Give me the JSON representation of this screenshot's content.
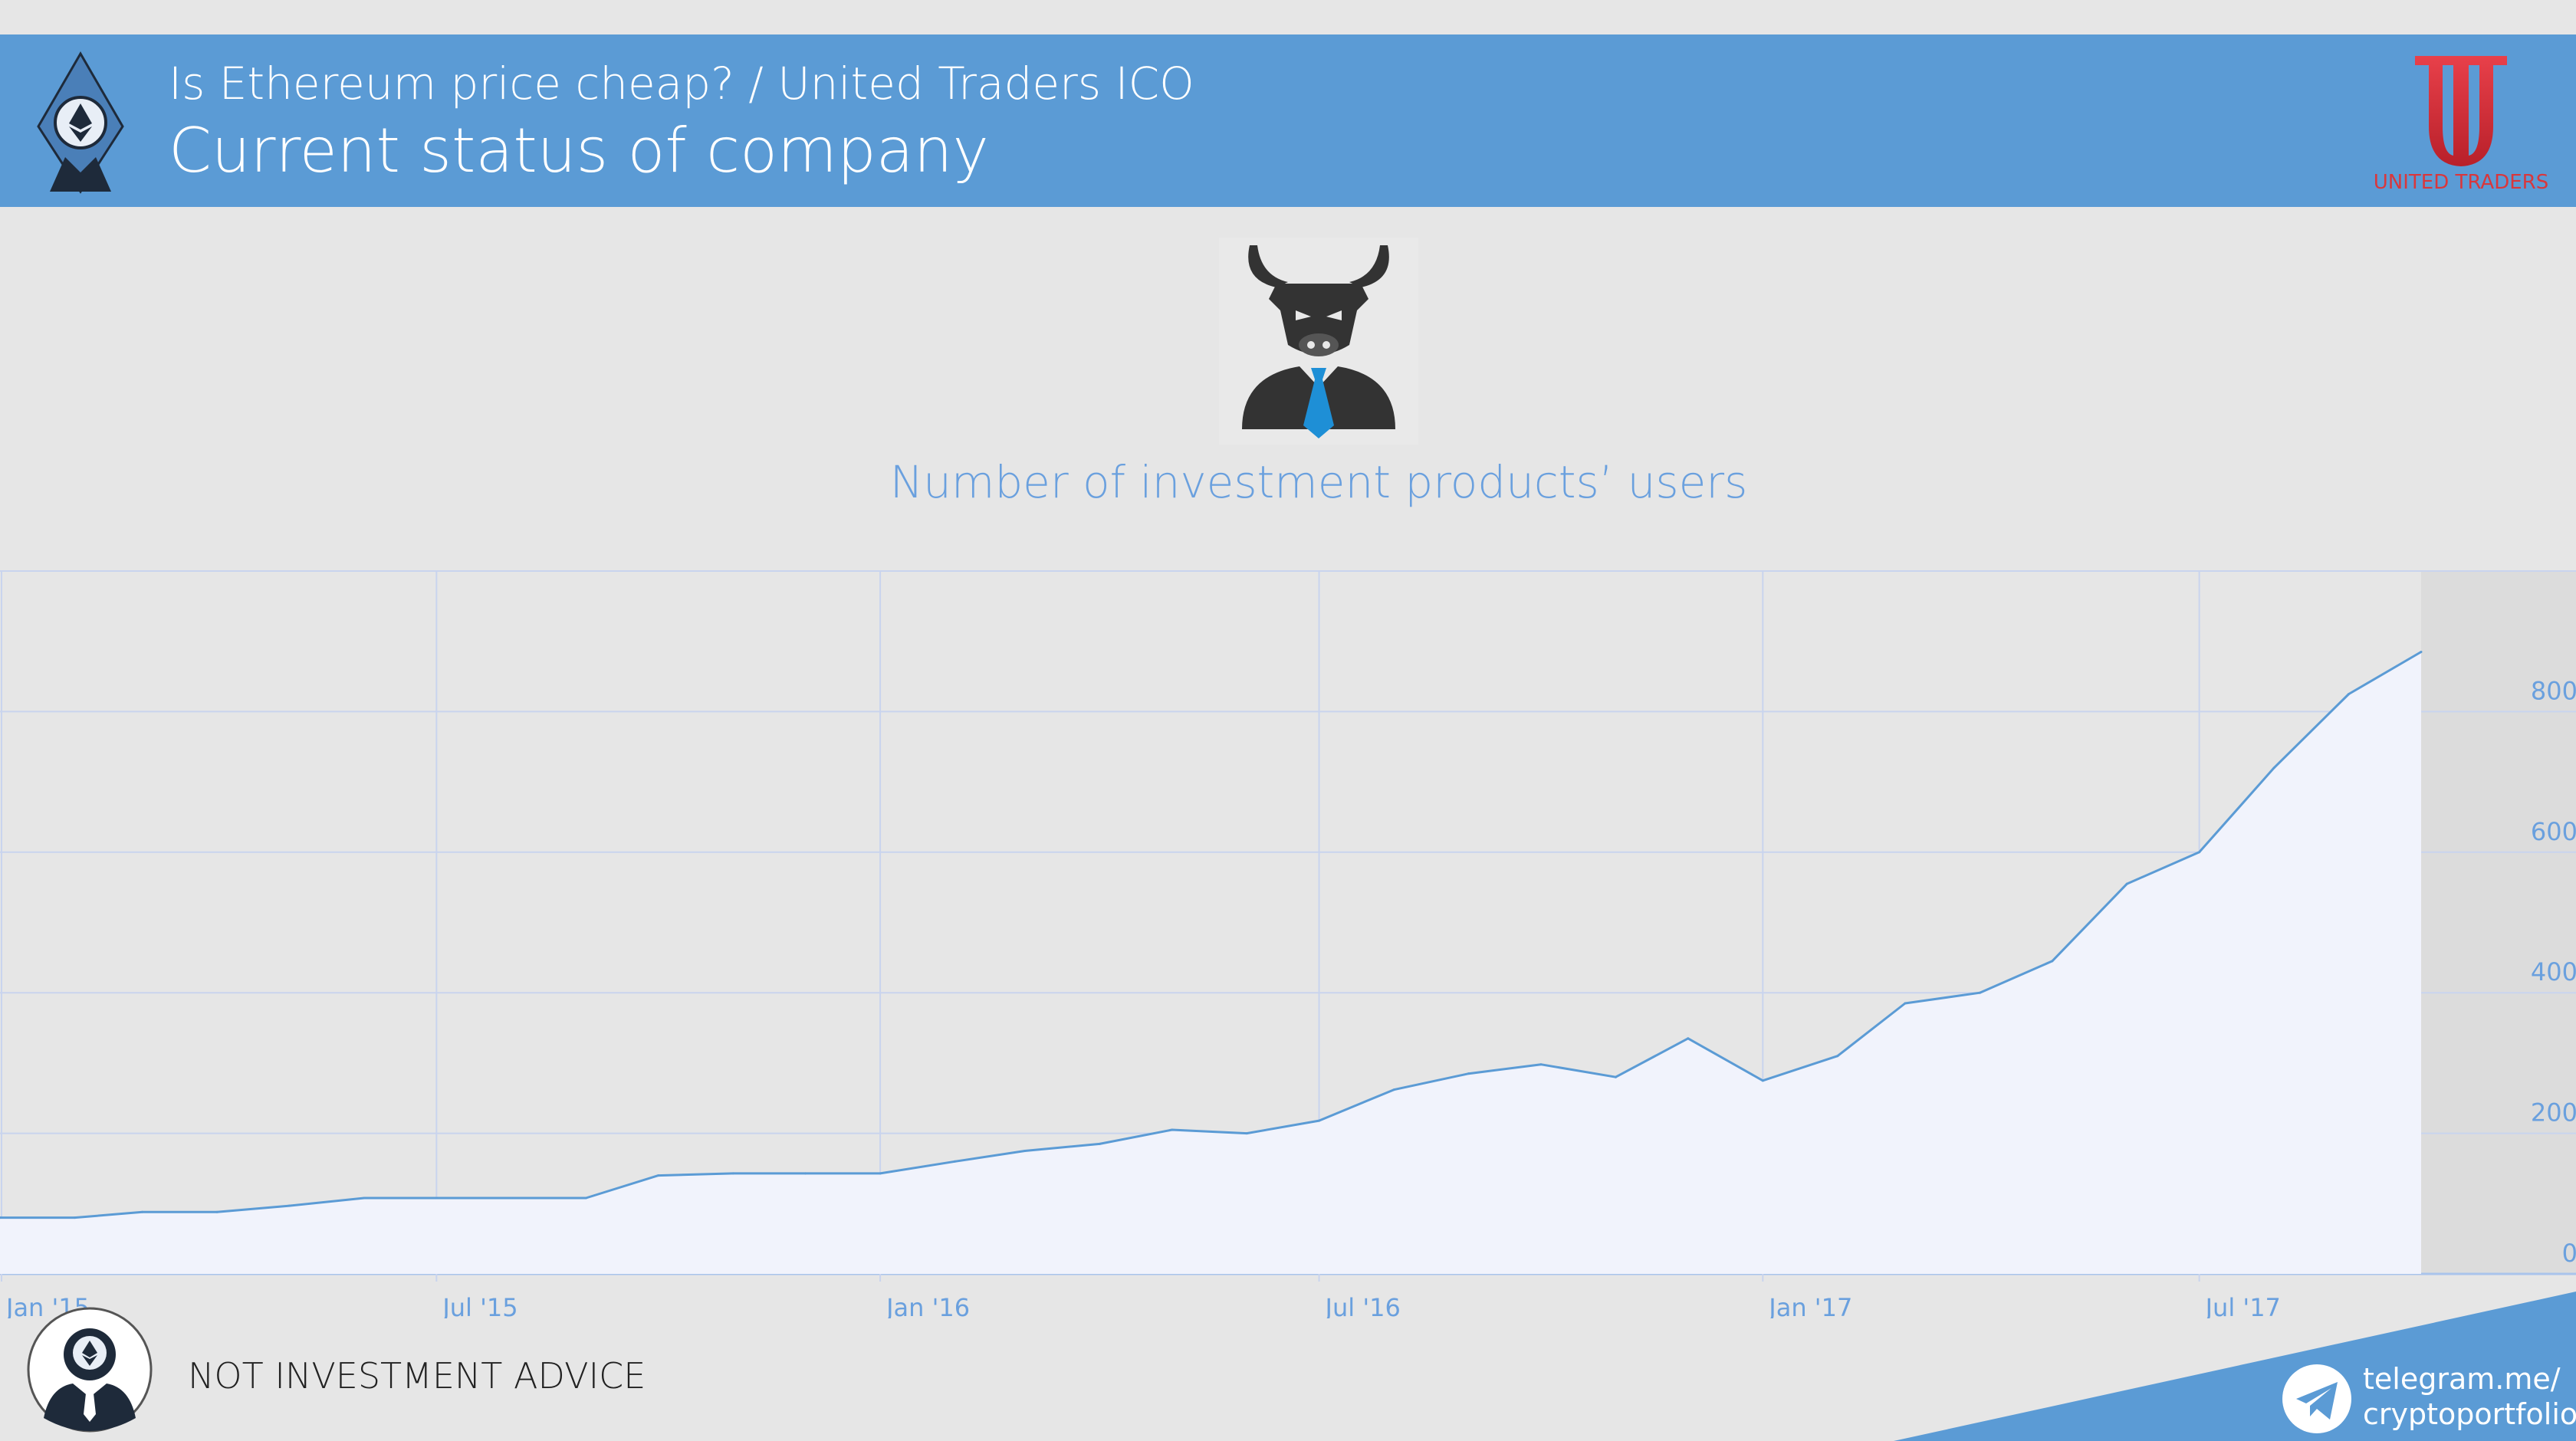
{
  "header": {
    "subtitle": "Is Ethereum price cheap? / United Traders ICO",
    "title": "Current status of company"
  },
  "brand": {
    "name": "UNITED TRADERS",
    "color": "#d9373c"
  },
  "colors": {
    "header_band": "#5b9bd5",
    "accent": "#6aa0de",
    "line": "#5b9bd5",
    "area_fill": "#f1f3fc"
  },
  "icons": {
    "header_logo": "ethereum-suit-man-icon",
    "bull": "bull-businessman-icon",
    "footer_avatar": "ethereum-suit-man-icon",
    "telegram": "telegram-icon"
  },
  "chart_data": {
    "type": "area",
    "title": "Number of investment products’ users",
    "xlabel": "",
    "ylabel": "",
    "x_tick_labels": [
      "Jan '15",
      "Jul '15",
      "Jan '16",
      "Jul '16",
      "Jan '17",
      "Jul '17"
    ],
    "y_tick_labels": [
      "0",
      "200",
      "400",
      "600",
      "800"
    ],
    "ylim": [
      0,
      1000
    ],
    "grid": true,
    "y_axis_position": "right",
    "x": [
      "2015-01-01",
      "2015-02-01",
      "2015-03-01",
      "2015-04-01",
      "2015-05-01",
      "2015-06-01",
      "2015-07-01",
      "2015-08-01",
      "2015-09-01",
      "2015-10-01",
      "2015-11-01",
      "2015-12-01",
      "2016-01-01",
      "2016-02-01",
      "2016-03-01",
      "2016-04-01",
      "2016-05-01",
      "2016-06-01",
      "2016-07-01",
      "2016-08-01",
      "2016-09-01",
      "2016-10-01",
      "2016-11-01",
      "2016-12-01",
      "2017-01-01",
      "2017-02-01",
      "2017-03-01",
      "2017-04-01",
      "2017-05-01",
      "2017-06-01",
      "2017-07-01",
      "2017-08-01",
      "2017-09-01",
      "2017-10-01"
    ],
    "series": [
      {
        "values": [
          80,
          80,
          88,
          88,
          97,
          108,
          108,
          108,
          108,
          140,
          143,
          143,
          143,
          160,
          175,
          185,
          205,
          200,
          218,
          262,
          285,
          298,
          280,
          335,
          275,
          310,
          385,
          400,
          445,
          555,
          600,
          720,
          825,
          885
        ]
      }
    ]
  },
  "footer": {
    "disclaimer": "NOT INVESTMENT ADVICE",
    "telegram_line1": "telegram.me/",
    "telegram_line2": "cryptoportfolio"
  }
}
